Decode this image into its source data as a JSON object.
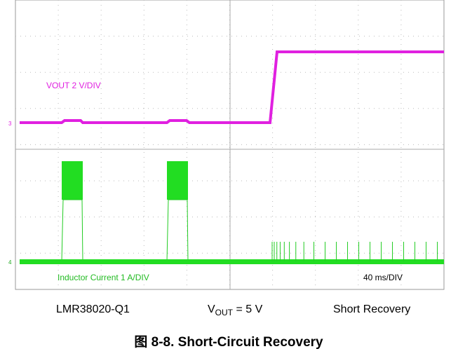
{
  "scope": {
    "ch3_label": "VOUT  2 V/DIV",
    "ch4_label": "Inductor Current  1 A/DIV",
    "timebase": "40 ms/DIV",
    "ch3_marker": "3",
    "ch4_marker": "4"
  },
  "caption": {
    "device": "LMR38020-Q1",
    "vout_v": "V",
    "vout_sub": "OUT",
    "vout_rest": " = 5 V",
    "condition": "Short Recovery"
  },
  "figure_title": "图 8-8. Short-Circuit Recovery"
}
